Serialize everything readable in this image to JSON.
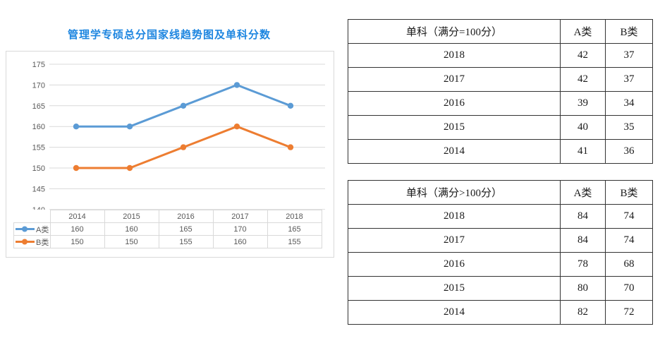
{
  "chart_data": {
    "type": "line",
    "title": "管理学专硕总分国家线趋势图及单科分数",
    "title_color": "#1e86e0",
    "categories": [
      "2014",
      "2015",
      "2016",
      "2017",
      "2018"
    ],
    "series": [
      {
        "name": "A类",
        "color": "#5b9bd5",
        "values": [
          160,
          160,
          165,
          170,
          165
        ]
      },
      {
        "name": "B类",
        "color": "#ed7d31",
        "values": [
          150,
          150,
          155,
          160,
          155
        ]
      }
    ],
    "ylim": [
      140,
      175
    ],
    "yticks": [
      175,
      170,
      165,
      160,
      155,
      150,
      145,
      140
    ],
    "grid": true,
    "legend_position": "data-table-left",
    "data_table_shown": true,
    "gridline_color": "#d9d9d9",
    "axis_text_color": "#595959"
  },
  "score_tables": [
    {
      "title": "单科（满分=100分）",
      "col_a": "A类",
      "col_b": "B类",
      "rows": [
        {
          "year": "2018",
          "a": "42",
          "b": "37"
        },
        {
          "year": "2017",
          "a": "42",
          "b": "37"
        },
        {
          "year": "2016",
          "a": "39",
          "b": "34"
        },
        {
          "year": "2015",
          "a": "40",
          "b": "35"
        },
        {
          "year": "2014",
          "a": "41",
          "b": "36"
        }
      ]
    },
    {
      "title": "单科（满分>100分）",
      "col_a": "A类",
      "col_b": "B类",
      "rows": [
        {
          "year": "2018",
          "a": "84",
          "b": "74"
        },
        {
          "year": "2017",
          "a": "84",
          "b": "74"
        },
        {
          "year": "2016",
          "a": "78",
          "b": "68"
        },
        {
          "year": "2015",
          "a": "80",
          "b": "70"
        },
        {
          "year": "2014",
          "a": "82",
          "b": "72"
        }
      ]
    }
  ]
}
